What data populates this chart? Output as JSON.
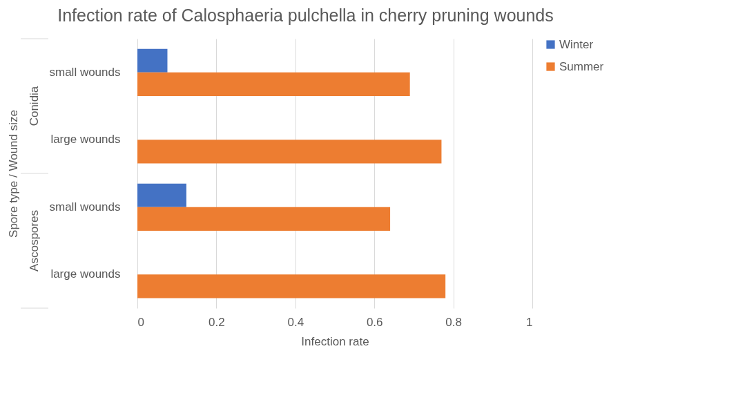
{
  "chart_data": {
    "type": "bar",
    "orientation": "horizontal",
    "title": "Infection rate of Calosphaeria pulchella in cherry pruning wounds",
    "xlabel": "Infection rate",
    "ylabel": "Spore type / Wound size",
    "categories": [
      "small wounds",
      "large wounds",
      "small wounds",
      "large wounds"
    ],
    "annotations": [
      "Conidia",
      "Ascospores"
    ],
    "series": [
      {
        "name": "Winter",
        "color": "#4472c4",
        "values": [
          0.076,
          null,
          0.124,
          null
        ]
      },
      {
        "name": "Summer",
        "color": "#ed7d31",
        "values": [
          0.69,
          0.77,
          0.64,
          0.78
        ]
      }
    ],
    "xlim": [
      0,
      1
    ],
    "xticks": [
      0,
      0.2,
      0.4,
      0.6,
      0.8,
      1
    ],
    "grid": "x",
    "legend": "right"
  }
}
